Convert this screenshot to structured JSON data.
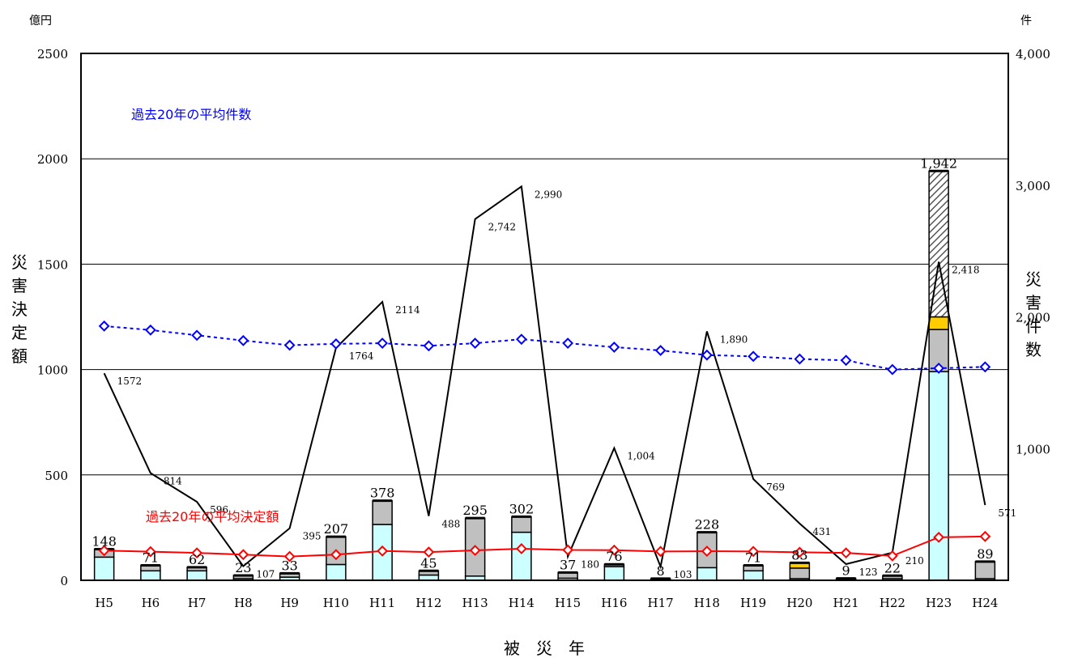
{
  "chart_data": {
    "type": "bar",
    "categories": [
      "H5",
      "H6",
      "H7",
      "H8",
      "H9",
      "H10",
      "H11",
      "H12",
      "H13",
      "H14",
      "H15",
      "H16",
      "H17",
      "H18",
      "H19",
      "H20",
      "H21",
      "H22",
      "H23",
      "H24"
    ],
    "x_axis_title": "被　災　年",
    "left_axis": {
      "unit": "億円",
      "title": "災害決定額",
      "ylim": [
        0,
        2500
      ],
      "ticks": [
        0,
        500,
        1000,
        1500,
        2000,
        2500
      ]
    },
    "right_axis": {
      "unit": "件",
      "title": "災害件数",
      "ylim": [
        0,
        4000
      ],
      "ticks": [
        "",
        "1,000",
        "2,000",
        "3,000",
        "4,000"
      ]
    },
    "bar_totals": [
      148,
      71,
      62,
      23,
      33,
      207,
      378,
      45,
      295,
      302,
      37,
      76,
      8,
      228,
      71,
      83,
      9,
      22,
      1942,
      89
    ],
    "bar_labels": [
      "148",
      "71",
      "62",
      "23",
      "33",
      "207",
      "378",
      "45",
      "295",
      "302",
      "37",
      "76",
      "8",
      "228",
      "71",
      "83",
      "9",
      "22",
      "1,942",
      "89"
    ],
    "bar_segments": [
      [
        110,
        38,
        0,
        0
      ],
      [
        45,
        26,
        0,
        0
      ],
      [
        45,
        17,
        0,
        0
      ],
      [
        8,
        15,
        0,
        0
      ],
      [
        15,
        18,
        0,
        0
      ],
      [
        75,
        132,
        0,
        0
      ],
      [
        265,
        113,
        0,
        0
      ],
      [
        25,
        20,
        0,
        0
      ],
      [
        20,
        275,
        0,
        0
      ],
      [
        228,
        74,
        0,
        0
      ],
      [
        10,
        27,
        0,
        0
      ],
      [
        65,
        11,
        0,
        0
      ],
      [
        3,
        5,
        0,
        0
      ],
      [
        60,
        168,
        0,
        0
      ],
      [
        45,
        26,
        0,
        0
      ],
      [
        8,
        50,
        25,
        0
      ],
      [
        3,
        6,
        0,
        0
      ],
      [
        8,
        14,
        0,
        0
      ],
      [
        990,
        200,
        60,
        692
      ],
      [
        8,
        81,
        0,
        0
      ]
    ],
    "segment_colors": [
      "#ccffff",
      "#c0c0c0",
      "#ffcc00",
      "hatch"
    ],
    "count_series": {
      "values": [
        1572,
        814,
        596,
        107,
        395,
        1764,
        2114,
        488,
        2742,
        2990,
        180,
        1004,
        103,
        1890,
        769,
        431,
        123,
        210,
        2418,
        571
      ],
      "labels": [
        "1572",
        "814",
        "596",
        "107",
        "395",
        "1764",
        "2114",
        "488",
        "2,742",
        "2,990",
        "180",
        "1,004",
        "103",
        "1,890",
        "769",
        "431",
        "123",
        "210",
        "2,418",
        "571"
      ],
      "color": "#000000"
    },
    "avg_count_series": {
      "name": "過去20年の平均件数",
      "values": [
        1930,
        1900,
        1860,
        1820,
        1785,
        1795,
        1800,
        1780,
        1800,
        1830,
        1800,
        1770,
        1745,
        1710,
        1700,
        1680,
        1670,
        1600,
        1610,
        1620
      ],
      "color": "#0000ff"
    },
    "avg_amount_series": {
      "name": "過去20年の平均決定額",
      "values": [
        141,
        136,
        130,
        122,
        113,
        122,
        139,
        134,
        142,
        150,
        144,
        143,
        137,
        138,
        137,
        133,
        130,
        116,
        204,
        208
      ],
      "color": "#ff0000"
    },
    "grid": true
  }
}
